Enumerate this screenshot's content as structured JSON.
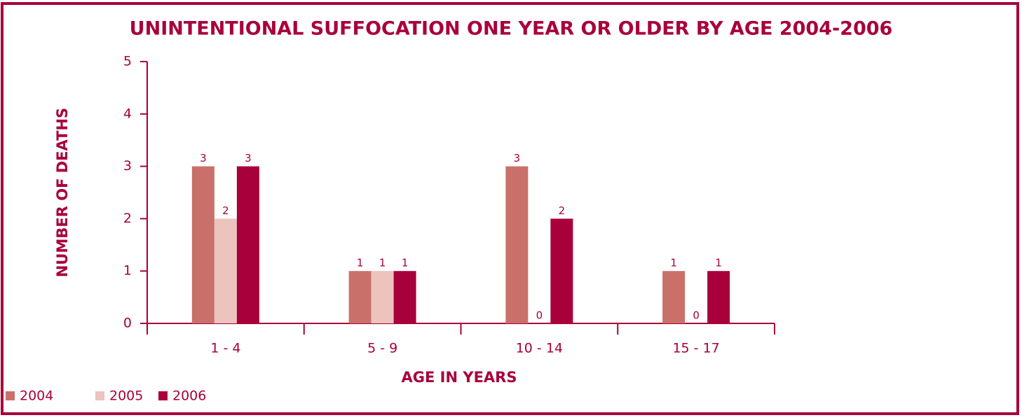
{
  "chart_data": {
    "type": "bar",
    "title": "UNINTENTIONAL SUFFOCATION ONE YEAR OR OLDER BY AGE 2004-2006",
    "xlabel": "AGE IN YEARS",
    "ylabel": "NUMBER OF DEATHS",
    "categories": [
      "1 - 4",
      "5 - 9",
      "10 - 14",
      "15 - 17"
    ],
    "series": [
      {
        "name": "2004",
        "color": "#c9706b",
        "values": [
          3,
          1,
          3,
          1
        ]
      },
      {
        "name": "2005",
        "color": "#ecc3bd",
        "values": [
          2,
          1,
          0,
          0
        ]
      },
      {
        "name": "2006",
        "color": "#a8003b",
        "values": [
          3,
          1,
          2,
          1
        ]
      }
    ],
    "ylim": [
      0,
      5
    ],
    "yticks": [
      0,
      1,
      2,
      3,
      4,
      5
    ],
    "legend": "bottom-left"
  }
}
